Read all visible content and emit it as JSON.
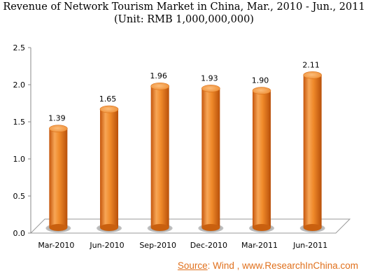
{
  "chart_data": {
    "type": "bar",
    "title": "Revenue of Network Tourism Market in China, Mar., 2010 - Jun., 2011",
    "subtitle": "(Unit: RMB 1,000,000,000)",
    "categories": [
      "Mar-2010",
      "Jun-2010",
      "Sep-2010",
      "Dec-2010",
      "Mar-2011",
      "Jun-2011"
    ],
    "values": [
      1.39,
      1.65,
      1.96,
      1.93,
      1.9,
      2.11
    ],
    "value_labels": [
      "1.39",
      "1.65",
      "1.96",
      "1.93",
      "1.90",
      "2.11"
    ],
    "yticks": [
      "0.0",
      "0.5",
      "1.0",
      "1.5",
      "2.0",
      "2.5"
    ],
    "ylim": [
      0,
      2.5
    ],
    "xlabel": "",
    "ylabel": "",
    "grid": false,
    "legend": "none",
    "style": "3d-cylinder",
    "bar_color": "#f08a2a"
  },
  "source": {
    "label": "Source",
    "text": ": Wind , www.ResearchInChina.com"
  }
}
